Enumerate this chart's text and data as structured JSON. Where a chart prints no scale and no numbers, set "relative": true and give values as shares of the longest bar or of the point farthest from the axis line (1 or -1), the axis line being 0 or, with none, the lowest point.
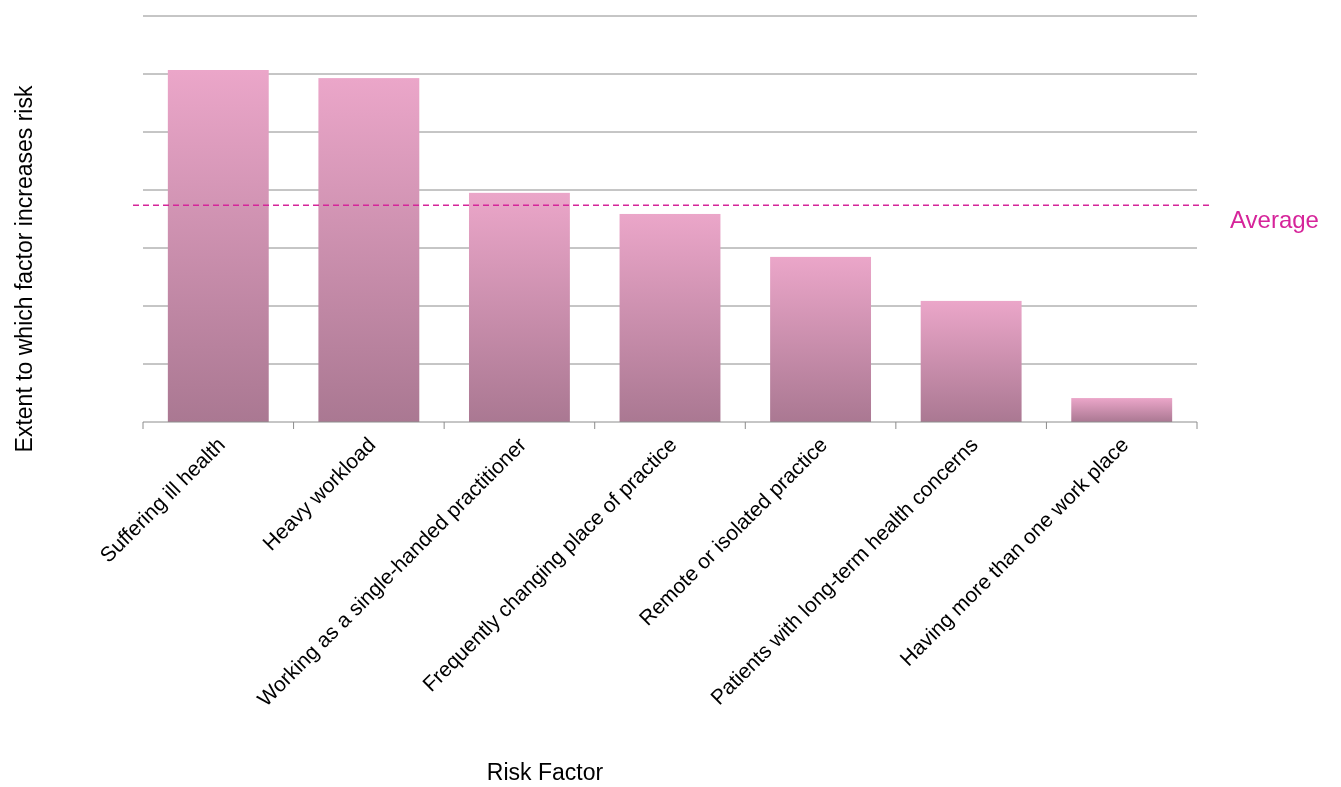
{
  "chart_data": {
    "type": "bar",
    "relative": true,
    "xlabel": "Risk Factor",
    "ylabel": "Extent to which factor increases risk",
    "categories": [
      "Suffering ill health",
      "Heavy workload",
      "Working as a single-handed practitioner",
      "Frequently changing place of practice",
      "Remote or isolated practice",
      "Patients with long-term health concerns",
      "Having more than one work place"
    ],
    "values": [
      1,
      0.977,
      0.651,
      0.591,
      0.469,
      0.344,
      0.068
    ],
    "color": "#eba6c9",
    "grid": "y",
    "ref_lines": [
      {
        "axis": "y",
        "value": 0.616,
        "label": "Average",
        "color": "#d6249a",
        "line_style": "dashed"
      }
    ]
  }
}
